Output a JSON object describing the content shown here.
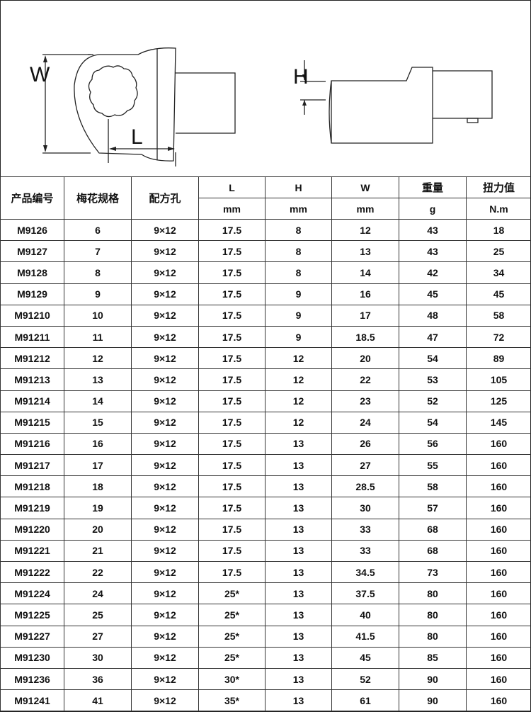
{
  "drawing": {
    "labels": {
      "w": "W",
      "l": "L",
      "h": "H"
    }
  },
  "table": {
    "headers": [
      "产品编号",
      "梅花规格",
      "配方孔",
      "L",
      "H",
      "W",
      "重量",
      "扭力值"
    ],
    "units": [
      "mm",
      "mm",
      "mm",
      "g",
      "N.m"
    ],
    "rows": [
      [
        "M9126",
        "6",
        "9×12",
        "17.5",
        "8",
        "12",
        "43",
        "18"
      ],
      [
        "M9127",
        "7",
        "9×12",
        "17.5",
        "8",
        "13",
        "43",
        "25"
      ],
      [
        "M9128",
        "8",
        "9×12",
        "17.5",
        "8",
        "14",
        "42",
        "34"
      ],
      [
        "M9129",
        "9",
        "9×12",
        "17.5",
        "9",
        "16",
        "45",
        "45"
      ],
      [
        "M91210",
        "10",
        "9×12",
        "17.5",
        "9",
        "17",
        "48",
        "58"
      ],
      [
        "M91211",
        "11",
        "9×12",
        "17.5",
        "9",
        "18.5",
        "47",
        "72"
      ],
      [
        "M91212",
        "12",
        "9×12",
        "17.5",
        "12",
        "20",
        "54",
        "89"
      ],
      [
        "M91213",
        "13",
        "9×12",
        "17.5",
        "12",
        "22",
        "53",
        "105"
      ],
      [
        "M91214",
        "14",
        "9×12",
        "17.5",
        "12",
        "23",
        "52",
        "125"
      ],
      [
        "M91215",
        "15",
        "9×12",
        "17.5",
        "12",
        "24",
        "54",
        "145"
      ],
      [
        "M91216",
        "16",
        "9×12",
        "17.5",
        "13",
        "26",
        "56",
        "160"
      ],
      [
        "M91217",
        "17",
        "9×12",
        "17.5",
        "13",
        "27",
        "55",
        "160"
      ],
      [
        "M91218",
        "18",
        "9×12",
        "17.5",
        "13",
        "28.5",
        "58",
        "160"
      ],
      [
        "M91219",
        "19",
        "9×12",
        "17.5",
        "13",
        "30",
        "57",
        "160"
      ],
      [
        "M91220",
        "20",
        "9×12",
        "17.5",
        "13",
        "33",
        "68",
        "160"
      ],
      [
        "M91221",
        "21",
        "9×12",
        "17.5",
        "13",
        "33",
        "68",
        "160"
      ],
      [
        "M91222",
        "22",
        "9×12",
        "17.5",
        "13",
        "34.5",
        "73",
        "160"
      ],
      [
        "M91224",
        "24",
        "9×12",
        "25*",
        "13",
        "37.5",
        "80",
        "160"
      ],
      [
        "M91225",
        "25",
        "9×12",
        "25*",
        "13",
        "40",
        "80",
        "160"
      ],
      [
        "M91227",
        "27",
        "9×12",
        "25*",
        "13",
        "41.5",
        "80",
        "160"
      ],
      [
        "M91230",
        "30",
        "9×12",
        "25*",
        "13",
        "45",
        "85",
        "160"
      ],
      [
        "M91236",
        "36",
        "9×12",
        "30*",
        "13",
        "52",
        "90",
        "160"
      ],
      [
        "M91241",
        "41",
        "9×12",
        "35*",
        "13",
        "61",
        "90",
        "160"
      ]
    ]
  }
}
